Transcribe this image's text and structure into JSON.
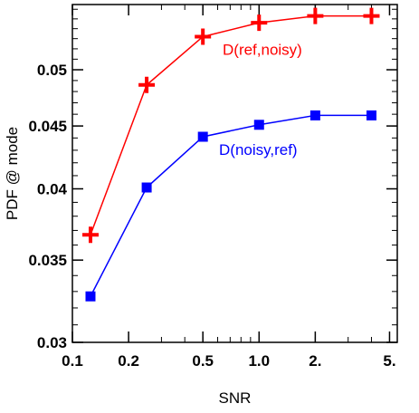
{
  "chart_data": {
    "type": "line",
    "xlabel": "SNR",
    "ylabel": "PDF @ mode",
    "xscale": "log",
    "yscale": "log",
    "xlim": [
      0.1,
      5.5
    ],
    "ylim": [
      0.03,
      0.0565
    ],
    "grid": false,
    "legend": "inline labels next to series",
    "x_ticks": [
      {
        "value": 0.1,
        "label": "0.1"
      },
      {
        "value": 0.2,
        "label": "0.2"
      },
      {
        "value": 0.5,
        "label": "0.5"
      },
      {
        "value": 1.0,
        "label": "1.0"
      },
      {
        "value": 2.0,
        "label": "2."
      },
      {
        "value": 5.0,
        "label": "5."
      }
    ],
    "y_ticks": [
      {
        "value": 0.03,
        "label": "0.03"
      },
      {
        "value": 0.035,
        "label": "0.035"
      },
      {
        "value": 0.04,
        "label": "0.04"
      },
      {
        "value": 0.045,
        "label": "0.045"
      },
      {
        "value": 0.05,
        "label": "0.05"
      }
    ],
    "x": [
      0.125,
      0.25,
      0.5,
      1.0,
      2.0,
      4.0
    ],
    "series": [
      {
        "name": "D(ref,noisy)",
        "color": "#ff0000",
        "marker": "plus",
        "values": [
          0.0367,
          0.0486,
          0.0532,
          0.0546,
          0.0553,
          0.0553
        ]
      },
      {
        "name": "D(noisy,ref)",
        "color": "#0000ff",
        "marker": "square",
        "values": [
          0.0327,
          0.0401,
          0.0441,
          0.0451,
          0.0459,
          0.0459
        ]
      }
    ]
  }
}
